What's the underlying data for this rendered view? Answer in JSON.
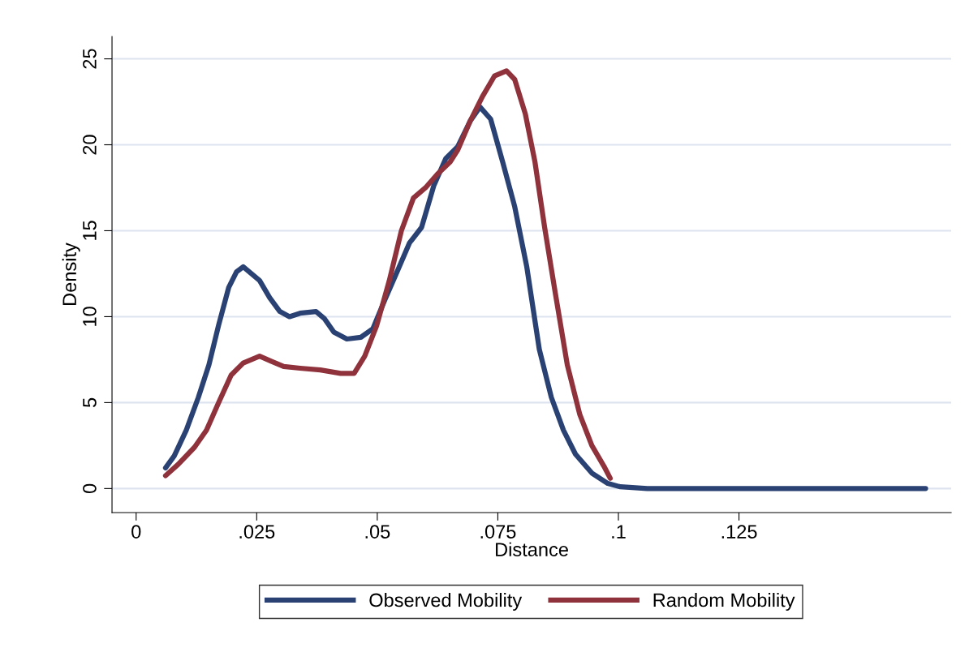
{
  "chart_data": {
    "type": "line",
    "xlabel": "Distance",
    "ylabel": "Density",
    "xlim": [
      -0.005,
      0.169
    ],
    "ylim": [
      -1.4,
      26.3
    ],
    "xticks": [
      0,
      {
        "value": 0.025,
        "label": ".025"
      },
      {
        "value": 0.05,
        "label": ".05"
      },
      {
        "value": 0.075,
        "label": ".075"
      },
      {
        "value": 0.1,
        "label": ".1"
      },
      {
        "value": 0.125,
        "label": ".125"
      }
    ],
    "yticks": [
      0,
      5,
      10,
      15,
      20,
      25
    ],
    "grid": "y",
    "legend": "bottom",
    "series": [
      {
        "name": "Observed Mobility",
        "color": "#2a4273",
        "x": [
          0.0061,
          0.0079,
          0.0104,
          0.0129,
          0.0151,
          0.0171,
          0.0192,
          0.0208,
          0.0222,
          0.0239,
          0.0256,
          0.0277,
          0.0298,
          0.0318,
          0.034,
          0.0373,
          0.039,
          0.041,
          0.0437,
          0.0466,
          0.0491,
          0.0516,
          0.0541,
          0.0567,
          0.0592,
          0.0617,
          0.0642,
          0.0667,
          0.0693,
          0.0713,
          0.0735,
          0.076,
          0.0785,
          0.081,
          0.0836,
          0.0861,
          0.0886,
          0.0911,
          0.0945,
          0.0978,
          0.1004,
          0.106,
          0.1637
        ],
        "values": [
          1.2,
          1.9,
          3.4,
          5.3,
          7.2,
          9.5,
          11.7,
          12.6,
          12.9,
          12.5,
          12.1,
          11.1,
          10.3,
          10.0,
          10.2,
          10.3,
          9.9,
          9.1,
          8.7,
          8.8,
          9.3,
          11.0,
          12.6,
          14.3,
          15.2,
          17.6,
          19.2,
          19.9,
          21.4,
          22.2,
          21.5,
          19.0,
          16.4,
          12.9,
          8.1,
          5.3,
          3.4,
          2.0,
          0.9,
          0.3,
          0.1,
          0,
          0
        ]
      },
      {
        "name": "Random Mobility",
        "color": "#8f323b",
        "x": [
          0.0061,
          0.0087,
          0.0121,
          0.0146,
          0.0171,
          0.0197,
          0.0222,
          0.0256,
          0.0281,
          0.0306,
          0.034,
          0.0382,
          0.0424,
          0.0452,
          0.0474,
          0.0499,
          0.0525,
          0.055,
          0.0575,
          0.06,
          0.0625,
          0.0651,
          0.0667,
          0.0693,
          0.0718,
          0.0743,
          0.0768,
          0.0785,
          0.0807,
          0.0827,
          0.0847,
          0.0869,
          0.0894,
          0.092,
          0.0945,
          0.097,
          0.0983
        ],
        "values": [
          0.75,
          1.4,
          2.4,
          3.4,
          5.0,
          6.6,
          7.3,
          7.7,
          7.4,
          7.1,
          7.0,
          6.9,
          6.7,
          6.7,
          7.7,
          9.5,
          12.1,
          15.0,
          16.9,
          17.5,
          18.3,
          19.0,
          19.7,
          21.4,
          22.8,
          24.0,
          24.3,
          23.8,
          21.8,
          19.0,
          15.2,
          11.4,
          7.2,
          4.3,
          2.5,
          1.3,
          0.6
        ]
      }
    ]
  }
}
